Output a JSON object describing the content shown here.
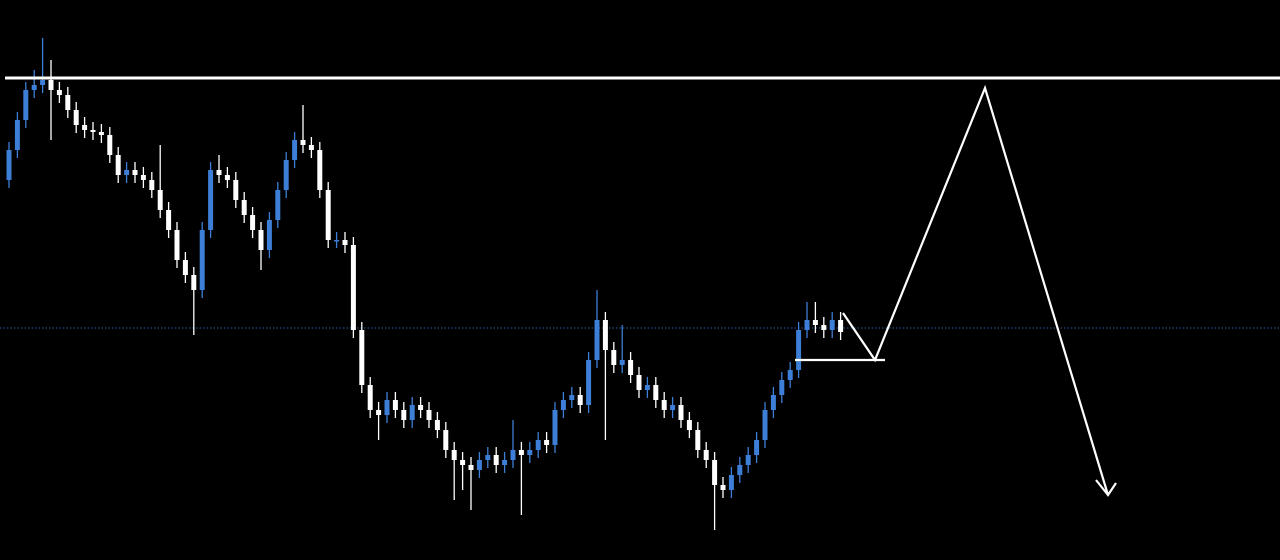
{
  "chart_data": {
    "type": "candlestick",
    "ylim": [
      0,
      560
    ],
    "up_color": "#3d7fd6",
    "down_color": "#ffffff",
    "resistance": 482,
    "price_line": 232,
    "support": 200,
    "open": [
      380,
      410,
      440,
      470,
      475,
      480,
      470,
      465,
      450,
      435,
      430,
      428,
      425,
      405,
      385,
      390,
      385,
      380,
      370,
      350,
      330,
      300,
      285,
      270,
      330,
      390,
      385,
      380,
      360,
      345,
      330,
      310,
      340,
      370,
      400,
      420,
      415,
      410,
      370,
      320,
      320,
      315,
      230,
      175,
      150,
      145,
      160,
      150,
      140,
      155,
      150,
      140,
      130,
      110,
      100,
      95,
      90,
      100,
      105,
      95,
      100,
      110,
      105,
      110,
      120,
      115,
      150,
      160,
      165,
      155,
      200,
      240,
      210,
      195,
      200,
      185,
      170,
      175,
      160,
      150,
      155,
      140,
      130,
      110,
      100,
      75,
      70,
      85,
      95,
      105,
      120,
      150,
      165,
      180,
      190,
      230,
      240,
      235,
      230,
      240
    ],
    "high": [
      418,
      448,
      478,
      490,
      522,
      500,
      478,
      473,
      458,
      443,
      438,
      436,
      433,
      413,
      398,
      398,
      393,
      388,
      415,
      358,
      338,
      308,
      293,
      338,
      398,
      405,
      393,
      388,
      368,
      353,
      338,
      348,
      378,
      408,
      428,
      455,
      423,
      418,
      378,
      328,
      328,
      323,
      238,
      183,
      158,
      168,
      168,
      158,
      163,
      163,
      158,
      148,
      138,
      118,
      108,
      103,
      108,
      113,
      113,
      108,
      140,
      118,
      118,
      128,
      128,
      158,
      168,
      173,
      173,
      208,
      270,
      248,
      218,
      235,
      208,
      193,
      183,
      183,
      168,
      163,
      163,
      148,
      138,
      118,
      108,
      83,
      93,
      103,
      113,
      128,
      158,
      173,
      188,
      198,
      238,
      258,
      258,
      243,
      248,
      248
    ],
    "low": [
      372,
      402,
      432,
      462,
      467,
      420,
      457,
      442,
      427,
      422,
      420,
      417,
      397,
      377,
      377,
      377,
      372,
      362,
      342,
      322,
      292,
      277,
      225,
      262,
      322,
      377,
      372,
      352,
      337,
      322,
      290,
      302,
      332,
      362,
      392,
      407,
      402,
      362,
      312,
      312,
      307,
      222,
      167,
      142,
      120,
      137,
      142,
      132,
      132,
      142,
      132,
      122,
      102,
      60,
      70,
      50,
      82,
      92,
      87,
      87,
      92,
      45,
      97,
      102,
      107,
      107,
      142,
      152,
      147,
      147,
      192,
      120,
      187,
      187,
      177,
      162,
      162,
      152,
      142,
      142,
      132,
      122,
      102,
      92,
      30,
      62,
      62,
      77,
      87,
      97,
      112,
      142,
      157,
      172,
      182,
      222,
      227,
      222,
      222,
      220
    ],
    "close": [
      410,
      440,
      470,
      475,
      480,
      470,
      465,
      450,
      435,
      430,
      428,
      425,
      405,
      385,
      390,
      385,
      380,
      370,
      350,
      330,
      300,
      285,
      270,
      330,
      390,
      385,
      380,
      360,
      345,
      330,
      310,
      340,
      370,
      400,
      420,
      415,
      410,
      370,
      320,
      320,
      315,
      230,
      175,
      150,
      145,
      160,
      150,
      140,
      155,
      150,
      140,
      130,
      110,
      100,
      95,
      90,
      100,
      105,
      95,
      100,
      110,
      105,
      110,
      120,
      115,
      150,
      160,
      165,
      155,
      200,
      240,
      210,
      195,
      200,
      185,
      170,
      175,
      160,
      150,
      155,
      140,
      130,
      110,
      100,
      75,
      70,
      85,
      95,
      105,
      120,
      150,
      165,
      180,
      190,
      230,
      240,
      235,
      230,
      240,
      228
    ]
  }
}
